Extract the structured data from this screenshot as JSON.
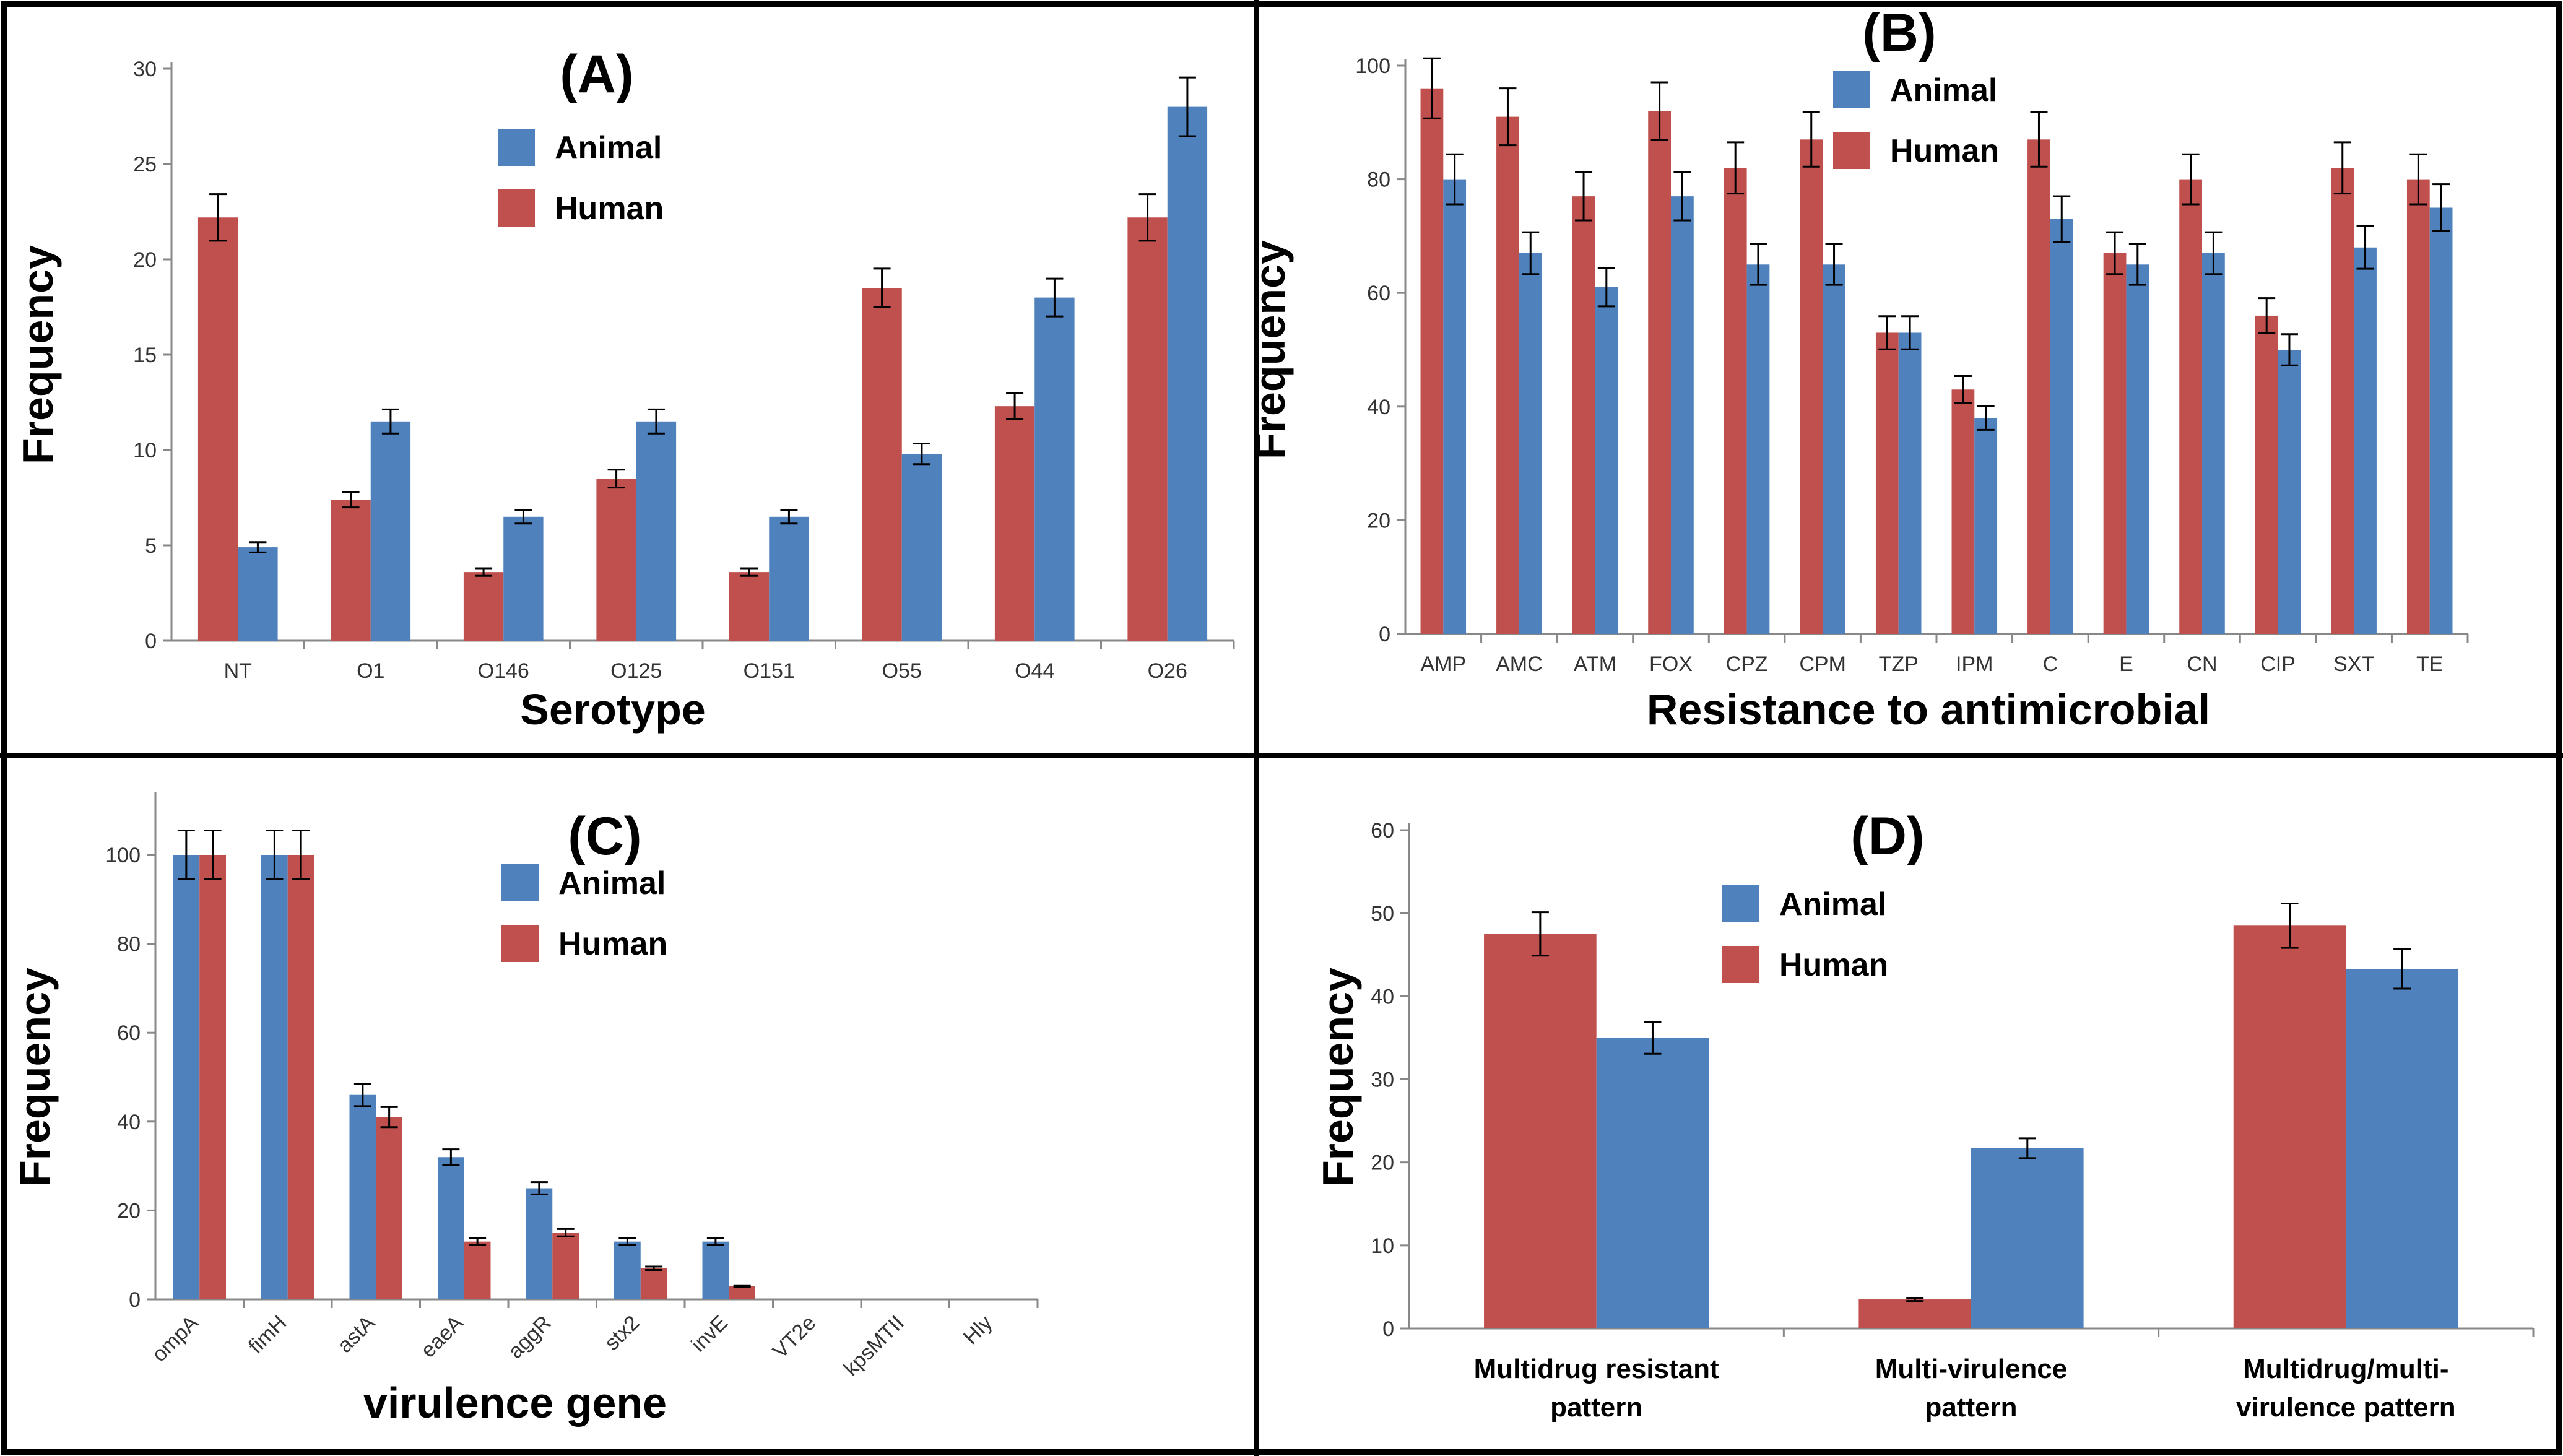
{
  "colors": {
    "human": "#C0504D",
    "animal": "#4F81BD"
  },
  "chart_data": [
    {
      "type": "bar",
      "title": "(A)",
      "xlabel": "Serotype",
      "ylabel": "Frequency",
      "ylim": [
        0,
        30
      ],
      "ystep": 5,
      "legend": [
        "Animal",
        "Human"
      ],
      "legend_placement": "top-center",
      "categories": [
        "NT",
        "O1",
        "O146",
        "O125",
        "O151",
        "O55",
        "O44",
        "O26"
      ],
      "series": [
        {
          "name": "Human",
          "values": [
            22.2,
            7.4,
            3.6,
            8.5,
            3.6,
            18.5,
            12.3,
            22.2
          ]
        },
        {
          "name": "Animal",
          "values": [
            4.9,
            11.5,
            6.5,
            11.5,
            6.5,
            9.8,
            18.0,
            28.0
          ]
        }
      ],
      "error_fraction": 0.055
    },
    {
      "type": "bar",
      "title": "(B)",
      "xlabel": "Resistance to antimicrobial",
      "ylabel": "Frequency",
      "ylim": [
        0,
        100
      ],
      "ystep": 20,
      "legend": [
        "Animal",
        "Human"
      ],
      "legend_placement": "top-center",
      "categories": [
        "AMP",
        "AMC",
        "ATM",
        "FOX",
        "CPZ",
        "CPM",
        "TZP",
        "IPM",
        "C",
        "E",
        "CN",
        "CIP",
        "SXT",
        "TE"
      ],
      "series": [
        {
          "name": "Human",
          "values": [
            96,
            91,
            77,
            92,
            82,
            87,
            53,
            43,
            87,
            67,
            80,
            56,
            82,
            80
          ]
        },
        {
          "name": "Animal",
          "values": [
            80,
            67,
            61,
            77,
            65,
            65,
            53,
            38,
            73,
            65,
            67,
            50,
            68,
            75
          ]
        }
      ],
      "error_fraction": 0.055
    },
    {
      "type": "bar",
      "title": "(C)",
      "xlabel": "virulence gene",
      "ylabel": "Frequency",
      "ylim": [
        0,
        100
      ],
      "ystep": 20,
      "legend": [
        "Animal",
        "Human"
      ],
      "legend_placement": "top-center",
      "categories": [
        "ompA",
        "fimH",
        "astA",
        "eaeA",
        "aggR",
        "stx2",
        "invE",
        "VT2e",
        "kpsMTII",
        "Hly"
      ],
      "series": [
        {
          "name": "Animal",
          "values": [
            100,
            100,
            46,
            32,
            25,
            13,
            13,
            0,
            0,
            0
          ]
        },
        {
          "name": "Human",
          "values": [
            100,
            100,
            41,
            13,
            15,
            7,
            3,
            0,
            0,
            0
          ]
        }
      ],
      "error_fraction": 0.055
    },
    {
      "type": "bar",
      "title": "(D)",
      "xlabel": "",
      "ylabel": "Frequency",
      "ylim": [
        0,
        60
      ],
      "ystep": 10,
      "legend": [
        "Animal",
        "Human"
      ],
      "legend_placement": "top-center",
      "categories": [
        [
          "Multidrug resistant",
          "pattern"
        ],
        [
          "Multi-virulence",
          "pattern"
        ],
        [
          "Multidrug/multi-",
          "virulence pattern"
        ]
      ],
      "series": [
        {
          "name": "Human",
          "values": [
            47.5,
            3.5,
            48.5
          ]
        },
        {
          "name": "Animal",
          "values": [
            35.0,
            21.7,
            43.3
          ]
        }
      ],
      "error_fraction": 0.055
    }
  ]
}
